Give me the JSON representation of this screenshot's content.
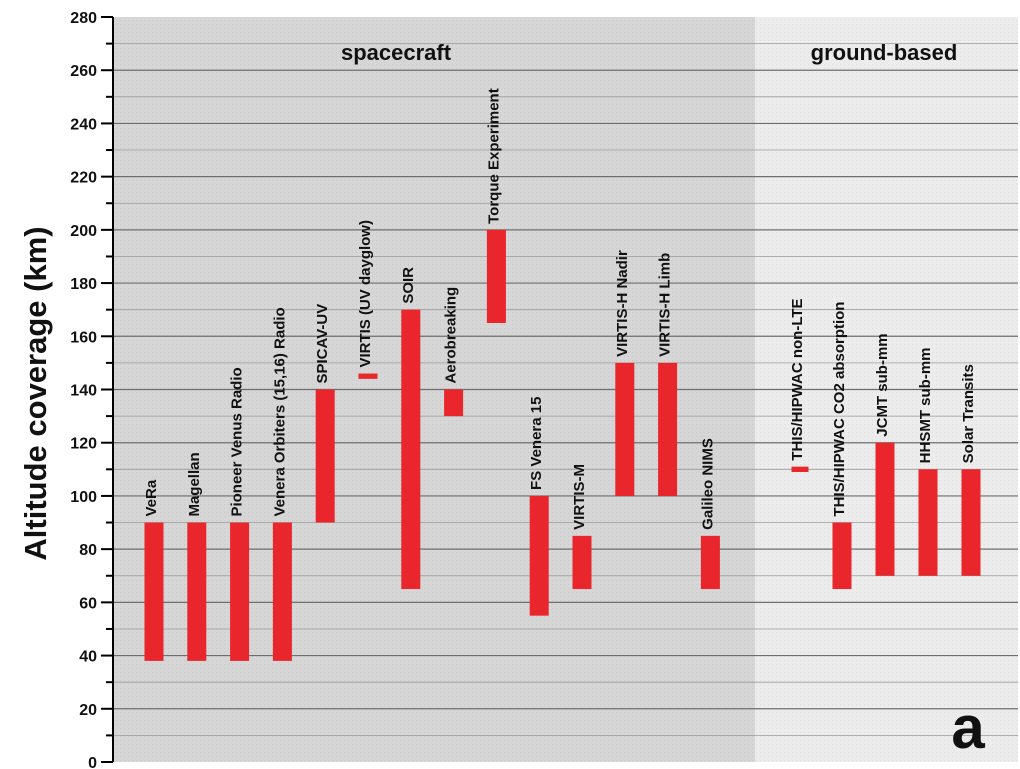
{
  "chart_data": {
    "type": "bar",
    "ylabel": "Altitude coverage (km)",
    "ylim": [
      0,
      280
    ],
    "yticks": [
      0,
      20,
      40,
      60,
      80,
      100,
      120,
      140,
      160,
      180,
      200,
      220,
      240,
      260,
      280
    ],
    "grid": true,
    "bar_color": "#e8262b",
    "regions": [
      {
        "label": "spacecraft",
        "background": "#d6d6d6"
      },
      {
        "label": "ground-based",
        "background": "#ececec"
      }
    ],
    "panel_label": "a",
    "instruments": [
      {
        "name": "VeRa",
        "region": 0,
        "low": 38,
        "high": 90
      },
      {
        "name": "Magellan",
        "region": 0,
        "low": 38,
        "high": 90
      },
      {
        "name": "Pioneer Venus Radio",
        "region": 0,
        "low": 38,
        "high": 90
      },
      {
        "name": "Venera Orbiters (15,16) Radio",
        "region": 0,
        "low": 38,
        "high": 90
      },
      {
        "name": "SPICAV-UV",
        "region": 0,
        "low": 90,
        "high": 140
      },
      {
        "name": "VIRTIS (UV dayglow)",
        "region": 0,
        "low": 144,
        "high": 146
      },
      {
        "name": "SOIR",
        "region": 0,
        "low": 65,
        "high": 170
      },
      {
        "name": "Aerobreaking",
        "region": 0,
        "low": 130,
        "high": 140
      },
      {
        "name": "Torque Experiment",
        "region": 0,
        "low": 165,
        "high": 200
      },
      {
        "name": "FS Venera 15",
        "region": 0,
        "low": 55,
        "high": 100
      },
      {
        "name": "VIRTIS-M",
        "region": 0,
        "low": 65,
        "high": 85
      },
      {
        "name": "VIRTIS-H Nadir",
        "region": 0,
        "low": 100,
        "high": 150
      },
      {
        "name": "VIRTIS-H Limb",
        "region": 0,
        "low": 100,
        "high": 150
      },
      {
        "name": "Galileo NIMS",
        "region": 0,
        "low": 65,
        "high": 85
      },
      {
        "name": "THIS/HIPWAC non-LTE",
        "region": 1,
        "low": 109,
        "high": 111
      },
      {
        "name": "THIS/HIPWAC CO2 absorption",
        "region": 1,
        "low": 65,
        "high": 90
      },
      {
        "name": "JCMT sub-mm",
        "region": 1,
        "low": 70,
        "high": 120
      },
      {
        "name": "HHSMT sub-mm",
        "region": 1,
        "low": 70,
        "high": 110
      },
      {
        "name": "Solar Transits",
        "region": 1,
        "low": 70,
        "high": 110
      }
    ]
  }
}
